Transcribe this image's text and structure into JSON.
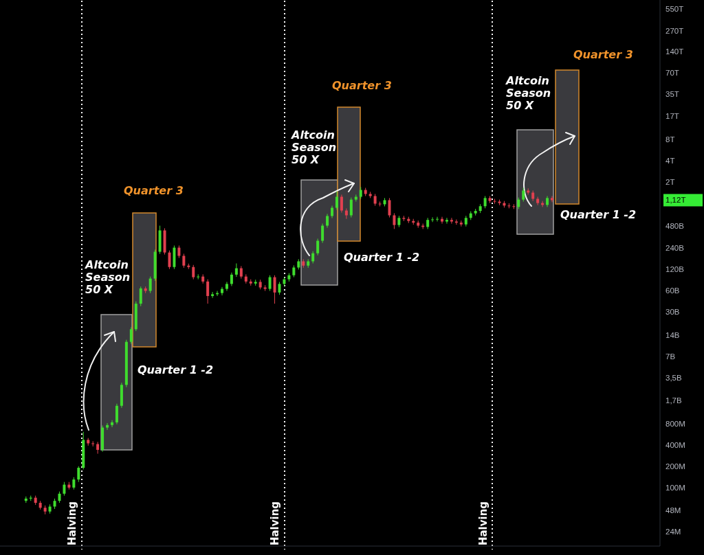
{
  "chart_data": {
    "type": "candlestick",
    "categories": [
      null,
      null,
      null,
      null,
      null,
      null,
      null,
      null,
      null,
      null,
      null,
      null,
      null,
      null,
      null,
      null,
      null,
      null,
      null,
      null,
      null,
      null,
      null,
      null,
      null,
      null,
      null,
      null,
      null,
      null,
      null,
      null,
      null,
      null,
      null,
      null,
      null,
      null,
      null,
      null,
      null,
      null,
      null,
      null,
      null,
      null,
      null,
      null,
      null,
      null,
      null,
      null,
      null,
      null,
      null,
      null,
      null,
      null,
      null,
      null,
      null,
      null,
      null,
      null,
      null,
      null,
      null,
      null,
      null,
      null,
      null,
      null,
      null,
      null,
      null,
      null,
      null,
      null,
      null,
      null,
      null,
      null,
      null,
      null,
      null,
      null,
      null,
      null,
      null,
      null,
      null,
      null,
      null,
      null,
      null,
      null,
      null,
      null,
      null,
      null,
      null,
      null,
      null,
      null,
      null,
      null,
      null,
      null,
      null,
      null,
      null,
      null,
      null,
      null,
      null,
      null,
      null,
      null,
      null,
      null,
      null,
      null,
      null,
      null,
      null,
      null,
      null,
      null,
      null,
      null,
      null,
      null,
      null,
      null,
      null,
      null,
      null,
      null
    ],
    "ohlc": [
      null,
      null,
      null,
      null,
      null,
      [
        65000000.0,
        75000000.0,
        61000000.0,
        70000000.0
      ],
      [
        70000000.0,
        77000000.0,
        65000000.0,
        72000000.0
      ],
      [
        72000000.0,
        77000000.0,
        57000000.0,
        61000000.0
      ],
      [
        61000000.0,
        65000000.0,
        49000000.0,
        52000000.0
      ],
      [
        52000000.0,
        56000000.0,
        42000000.0,
        46000000.0
      ],
      [
        46000000.0,
        58000000.0,
        43000000.0,
        54000000.0
      ],
      [
        54000000.0,
        70000000.0,
        50000000.0,
        65000000.0
      ],
      [
        65000000.0,
        88000000.0,
        61000000.0,
        82000000.0
      ],
      [
        82000000.0,
        120000000.0,
        77000000.0,
        110000000.0
      ],
      [
        110000000.0,
        120000000.0,
        94000000.0,
        100000000.0
      ],
      [
        100000000.0,
        140000000.0,
        94000000.0,
        130000000.0
      ],
      [
        130000000.0,
        200000000.0,
        120000000.0,
        190000000.0
      ],
      [
        190000000.0,
        610000000.0,
        180000000.0,
        470000000.0
      ],
      [
        470000000.0,
        500000000.0,
        390000000.0,
        420000000.0
      ],
      [
        420000000.0,
        450000000.0,
        380000000.0,
        410000000.0
      ],
      [
        410000000.0,
        440000000.0,
        300000000.0,
        340000000.0
      ],
      [
        340000000.0,
        750000000.0,
        320000000.0,
        700000000.0
      ],
      [
        700000000.0,
        810000000.0,
        650000000.0,
        760000000.0
      ],
      [
        760000000.0,
        890000000.0,
        710000000.0,
        830000000.0
      ],
      [
        830000000.0,
        1520000000.0,
        780000000.0,
        1420000000.0
      ],
      [
        1420000000.0,
        3000000000.0,
        1330000000.0,
        2800000000.0
      ],
      [
        2800000000.0,
        12100000000.0,
        2600000000.0,
        11300000000.0
      ],
      [
        11300000000.0,
        18200000000.0,
        10600000000.0,
        17000000000.0
      ],
      [
        17000000000.0,
        42000000000.0,
        16000000000.0,
        39000000000.0
      ],
      [
        39000000000.0,
        68000000000.0,
        36000000000.0,
        64000000000.0
      ],
      [
        64000000000.0,
        68000000000.0,
        55000000000.0,
        59000000000.0
      ],
      [
        59000000000.0,
        94000000000.0,
        55000000000.0,
        88000000000.0
      ],
      [
        88000000000.0,
        225000000000.0,
        82000000000.0,
        210000000000.0
      ],
      [
        210000000000.0,
        490000000000.0,
        196000000000.0,
        420000000000.0
      ],
      [
        420000000000.0,
        450000000000.0,
        192000000000.0,
        205000000000.0
      ],
      [
        205000000000.0,
        219000000000.0,
        120000000000.0,
        128000000000.0
      ],
      [
        128000000000.0,
        257000000000.0,
        120000000000.0,
        240000000000.0
      ],
      [
        240000000000.0,
        257000000000.0,
        172000000000.0,
        184000000000.0
      ],
      [
        184000000000.0,
        197000000000.0,
        125000000000.0,
        134000000000.0
      ],
      [
        134000000000.0,
        143000000000.0,
        120000000000.0,
        128000000000.0
      ],
      [
        128000000000.0,
        137000000000.0,
        86000000000.0,
        92000000000.0
      ],
      [
        92000000000.0,
        101000000000.0,
        86000000000.0,
        94000000000.0
      ],
      [
        94000000000.0,
        101000000000.0,
        75000000000.0,
        80000000000.0
      ],
      [
        80000000000.0,
        86000000000.0,
        39000000000.0,
        50000000000.0
      ],
      [
        50000000000.0,
        57000000000.0,
        47000000000.0,
        53000000000.0
      ],
      [
        53000000000.0,
        59000000000.0,
        50000000000.0,
        55000000000.0
      ],
      [
        55000000000.0,
        67000000000.0,
        51000000000.0,
        63000000000.0
      ],
      [
        63000000000.0,
        79000000000.0,
        59000000000.0,
        74000000000.0
      ],
      [
        74000000000.0,
        107000000000.0,
        69000000000.0,
        100000000000.0
      ],
      [
        100000000000.0,
        144000000000.0,
        93000000000.0,
        123000000000.0
      ],
      [
        123000000000.0,
        132000000000.0,
        88000000000.0,
        94000000000.0
      ],
      [
        94000000000.0,
        101000000000.0,
        75000000000.0,
        80000000000.0
      ],
      [
        80000000000.0,
        86000000000.0,
        70000000000.0,
        75000000000.0
      ],
      [
        75000000000.0,
        85000000000.0,
        70000000000.0,
        79000000000.0
      ],
      [
        79000000000.0,
        85000000000.0,
        62000000000.0,
        66000000000.0
      ],
      [
        66000000000.0,
        71000000000.0,
        59000000000.0,
        63000000000.0
      ],
      [
        63000000000.0,
        98000000000.0,
        59000000000.0,
        92000000000.0
      ],
      [
        92000000000.0,
        98000000000.0,
        39000000000.0,
        56000000000.0
      ],
      [
        56000000000.0,
        79000000000.0,
        52000000000.0,
        74000000000.0
      ],
      [
        74000000000.0,
        92000000000.0,
        69000000000.0,
        86000000000.0
      ],
      [
        86000000000.0,
        105000000000.0,
        80000000000.0,
        98000000000.0
      ],
      [
        98000000000.0,
        135000000000.0,
        92000000000.0,
        126000000000.0
      ],
      [
        126000000000.0,
        165000000000.0,
        118000000000.0,
        154000000000.0
      ],
      [
        154000000000.0,
        165000000000.0,
        125000000000.0,
        134000000000.0
      ],
      [
        134000000000.0,
        165000000000.0,
        125000000000.0,
        154000000000.0
      ],
      [
        154000000000.0,
        214000000000.0,
        144000000000.0,
        200000000000.0
      ],
      [
        200000000000.0,
        321000000000.0,
        187000000000.0,
        300000000000.0
      ],
      [
        300000000000.0,
        524000000000.0,
        280000000000.0,
        490000000000.0
      ],
      [
        490000000000.0,
        717000000000.0,
        458000000000.0,
        670000000000.0
      ],
      [
        670000000000.0,
        936000000000.0,
        626000000000.0,
        875000000000.0
      ],
      [
        875000000000.0,
        1490000000000.0,
        818000000000.0,
        1250000000000.0
      ],
      [
        1250000000000.0,
        1340000000000.0,
        748000000000.0,
        800000000000.0
      ],
      [
        800000000000.0,
        856000000000.0,
        610000000000.0,
        685000000000.0
      ],
      [
        685000000000.0,
        1220000000000.0,
        640000000000.0,
        1140000000000.0
      ],
      [
        1140000000000.0,
        1340000000000.0,
        1070000000000.0,
        1250000000000.0
      ],
      [
        1250000000000.0,
        1710000000000.0,
        1170000000000.0,
        1560000000000.0
      ],
      [
        1560000000000.0,
        1670000000000.0,
        1280000000000.0,
        1370000000000.0
      ],
      [
        1370000000000.0,
        1470000000000.0,
        1200000000000.0,
        1280000000000.0
      ],
      [
        1280000000000.0,
        1370000000000.0,
        935000000000.0,
        1000000000000.0
      ],
      [
        1000000000000.0,
        1070000000000.0,
        916000000000.0,
        980000000000.0
      ],
      [
        980000000000.0,
        1200000000000.0,
        916000000000.0,
        1120000000000.0
      ],
      [
        1120000000000.0,
        1200000000000.0,
        640000000000.0,
        685000000000.0
      ],
      [
        685000000000.0,
        733000000000.0,
        440000000000.0,
        500000000000.0
      ],
      [
        500000000000.0,
        674000000000.0,
        467000000000.0,
        630000000000.0
      ],
      [
        630000000000.0,
        674000000000.0,
        570000000000.0,
        610000000000.0
      ],
      [
        610000000000.0,
        653000000000.0,
        533000000000.0,
        570000000000.0
      ],
      [
        570000000000.0,
        610000000000.0,
        505000000000.0,
        540000000000.0
      ],
      [
        540000000000.0,
        578000000000.0,
        458000000000.0,
        490000000000.0
      ],
      [
        490000000000.0,
        524000000000.0,
        439000000000.0,
        470000000000.0
      ],
      [
        470000000000.0,
        631000000000.0,
        439000000000.0,
        590000000000.0
      ],
      [
        590000000000.0,
        642000000000.0,
        551000000000.0,
        600000000000.0
      ],
      [
        600000000000.0,
        653000000000.0,
        561000000000.0,
        610000000000.0
      ],
      [
        610000000000.0,
        653000000000.0,
        523000000000.0,
        560000000000.0
      ],
      [
        560000000000.0,
        631000000000.0,
        523000000000.0,
        590000000000.0
      ],
      [
        590000000000.0,
        631000000000.0,
        523000000000.0,
        560000000000.0
      ],
      [
        560000000000.0,
        599000000000.0,
        505000000000.0,
        540000000000.0
      ],
      [
        540000000000.0,
        578000000000.0,
        477000000000.0,
        510000000000.0
      ],
      [
        510000000000.0,
        674000000000.0,
        477000000000.0,
        630000000000.0
      ],
      [
        630000000000.0,
        781000000000.0,
        589000000000.0,
        730000000000.0
      ],
      [
        730000000000.0,
        845000000000.0,
        682000000000.0,
        790000000000.0
      ],
      [
        790000000000.0,
        984000000000.0,
        738000000000.0,
        920000000000.0
      ],
      [
        920000000000.0,
        1280000000000.0,
        860000000000.0,
        1200000000000.0
      ],
      [
        1200000000000.0,
        1280000000000.0,
        1020000000000.0,
        1090000000000.0
      ],
      [
        1090000000000.0,
        1170000000000.0,
        1000000000000.0,
        1070000000000.0
      ],
      [
        1070000000000.0,
        1140000000000.0,
        953000000000.0,
        1020000000000.0
      ],
      [
        1020000000000.0,
        1090000000000.0,
        879000000000.0,
        940000000000.0
      ],
      [
        940000000000.0,
        1010000000000.0,
        860000000000.0,
        920000000000.0
      ],
      [
        920000000000.0,
        984000000000.0,
        841000000000.0,
        900000000000.0
      ],
      [
        900000000000.0,
        1220000000000.0,
        841000000000.0,
        1140000000000.0
      ],
      [
        1140000000000.0,
        1670000000000.0,
        1070000000000.0,
        1530000000000.0
      ],
      [
        1530000000000.0,
        1640000000000.0,
        1340000000000.0,
        1430000000000.0
      ],
      [
        1430000000000.0,
        1530000000000.0,
        1090000000000.0,
        1170000000000.0
      ],
      [
        1170000000000.0,
        1250000000000.0,
        953000000000.0,
        1020000000000.0
      ],
      [
        1020000000000.0,
        1090000000000.0,
        897000000000.0,
        960000000000.0
      ],
      [
        960000000000.0,
        1280000000000.0,
        897000000000.0,
        1200000000000.0
      ],
      [
        1200000000000.0,
        1280000000000.0,
        1050000000000.0,
        1120000000000.0
      ],
      null,
      null,
      null,
      null,
      null,
      null,
      null,
      null,
      null,
      null,
      null,
      null,
      null,
      null,
      null,
      null,
      null,
      null,
      null,
      null,
      null,
      null
    ],
    "colors": [
      null,
      null,
      null,
      null,
      null,
      "#3fdc2e",
      "#3fdc2e",
      "#e0404f",
      "#e0404f",
      "#e0404f",
      "#3fdc2e",
      "#3fdc2e",
      "#3fdc2e",
      "#3fdc2e",
      "#e0404f",
      "#3fdc2e",
      "#3fdc2e",
      "#3fdc2e",
      "#e0404f",
      "#e0404f",
      "#e0404f",
      "#3fdc2e",
      "#3fdc2e",
      "#3fdc2e",
      "#3fdc2e",
      "#3fdc2e",
      "#3fdc2e",
      "#3fdc2e",
      "#3fdc2e",
      "#3fdc2e",
      "#e0404f",
      "#3fdc2e",
      "#3fdc2e",
      "#3fdc2e",
      "#e0404f",
      "#e0404f",
      "#3fdc2e",
      "#e0404f",
      "#e0404f",
      "#e0404f",
      "#e0404f",
      "#3fdc2e",
      "#e0404f",
      "#e0404f",
      "#3fdc2e",
      "#3fdc2e",
      "#3fdc2e",
      "#3fdc2e",
      "#3fdc2e",
      "#3fdc2e",
      "#e0404f",
      "#e0404f",
      "#e0404f",
      "#3fdc2e",
      "#e0404f",
      "#e0404f",
      "#3fdc2e",
      "#e0404f",
      "#3fdc2e",
      "#3fdc2e",
      "#3fdc2e",
      "#3fdc2e",
      "#3fdc2e",
      "#e0404f",
      "#3fdc2e",
      "#3fdc2e",
      "#3fdc2e",
      "#3fdc2e",
      "#3fdc2e",
      "#3fdc2e",
      "#3fdc2e",
      "#e0404f",
      "#e0404f",
      "#3fdc2e",
      "#3fdc2e",
      "#3fdc2e",
      "#e0404f",
      "#e0404f",
      "#e0404f",
      "#e0404f",
      "#3fdc2e",
      "#e0404f",
      "#e0404f",
      "#3fdc2e",
      "#e0404f",
      "#e0404f",
      "#e0404f",
      "#e0404f",
      "#e0404f",
      "#3fdc2e",
      "#3fdc2e",
      "#3fdc2e",
      "#e0404f",
      "#3fdc2e",
      "#e0404f",
      "#e0404f",
      "#e0404f",
      "#3fdc2e",
      "#3fdc2e",
      "#3fdc2e",
      "#3fdc2e",
      "#3fdc2e",
      "#e0404f",
      "#e0404f",
      "#e0404f",
      "#e0404f",
      "#e0404f",
      "#e0404f",
      "#3fdc2e",
      "#3fdc2e",
      "#e0404f",
      "#e0404f",
      "#e0404f",
      "#e0404f",
      "#3fdc2e",
      "#e0404f",
      null,
      null,
      null,
      null,
      null,
      null,
      null,
      null,
      null,
      null,
      null,
      null,
      null,
      null,
      null,
      null,
      null,
      null,
      null,
      null,
      null,
      null
    ],
    "log": true,
    "ylim": [
      15000000.0,
      740000000000000.0
    ],
    "yticks": [
      {
        "value": 24000000.0,
        "label": "24M"
      },
      {
        "value": 48000000.0,
        "label": "48M"
      },
      {
        "value": 100000000.0,
        "label": "100M"
      },
      {
        "value": 200000000.0,
        "label": "200M"
      },
      {
        "value": 400000000.0,
        "label": "400M"
      },
      {
        "value": 800000000.0,
        "label": "800M"
      },
      {
        "value": 1700000000.0,
        "label": "1,7B"
      },
      {
        "value": 3500000000.0,
        "label": "3,5B"
      },
      {
        "value": 7000000000.0,
        "label": "7B"
      },
      {
        "value": 14000000000.0,
        "label": "14B"
      },
      {
        "value": 30000000000.0,
        "label": "30B"
      },
      {
        "value": 60000000000.0,
        "label": "60B"
      },
      {
        "value": 120000000000.0,
        "label": "120B"
      },
      {
        "value": 240000000000.0,
        "label": "240B"
      },
      {
        "value": 480000000000.0,
        "label": "480B"
      },
      {
        "value": 1120000000000.0,
        "label": "1,12T"
      },
      {
        "value": 2000000000000.0,
        "label": "2T"
      },
      {
        "value": 4000000000000.0,
        "label": "4T"
      },
      {
        "value": 8000000000000.0,
        "label": "8T"
      },
      {
        "value": 17000000000000.0,
        "label": "17T"
      },
      {
        "value": 35000000000000.0,
        "label": "35T"
      },
      {
        "value": 70000000000000.0,
        "label": "70T"
      },
      {
        "value": 140000000000000.0,
        "label": "140T"
      },
      {
        "value": 270000000000000.0,
        "label": "270T"
      },
      {
        "value": 550000000000000.0,
        "label": "550T"
      }
    ],
    "annotations": [
      "Altcoin\nSeason\n50 X",
      "Quarter 3",
      "Quarter 1 -2",
      "Altcoin\nSeason\n50 X",
      "Quarter 3",
      "Quarter 1 -2",
      "Altcoin\nSeason\n50 X",
      "Quarter 3",
      "Quarter 1 -2",
      "Halving",
      "Halving",
      "Halving"
    ]
  }
}
